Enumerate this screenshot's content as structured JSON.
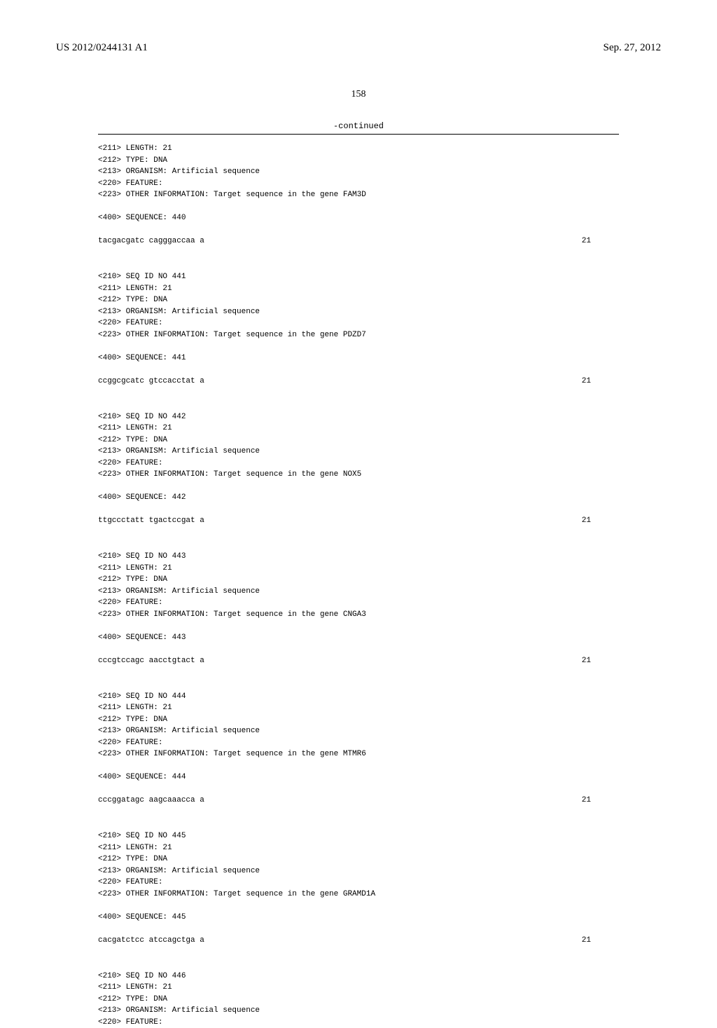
{
  "header": {
    "publication_number": "US 2012/0244131 A1",
    "date": "Sep. 27, 2012"
  },
  "page_number": "158",
  "continued_label": "-continued",
  "sequences": [
    {
      "meta": [
        "<211> LENGTH: 21",
        "<212> TYPE: DNA",
        "<213> ORGANISM: Artificial sequence",
        "<220> FEATURE:",
        "<223> OTHER INFORMATION: Target sequence in the gene FAM3D"
      ],
      "sequence_label": "<400> SEQUENCE: 440",
      "sequence": "tacgacgatc cagggaccaa a",
      "length": "21"
    },
    {
      "meta": [
        "<210> SEQ ID NO 441",
        "<211> LENGTH: 21",
        "<212> TYPE: DNA",
        "<213> ORGANISM: Artificial sequence",
        "<220> FEATURE:",
        "<223> OTHER INFORMATION: Target sequence in the gene PDZD7"
      ],
      "sequence_label": "<400> SEQUENCE: 441",
      "sequence": "ccggcgcatc gtccacctat a",
      "length": "21"
    },
    {
      "meta": [
        "<210> SEQ ID NO 442",
        "<211> LENGTH: 21",
        "<212> TYPE: DNA",
        "<213> ORGANISM: Artificial sequence",
        "<220> FEATURE:",
        "<223> OTHER INFORMATION: Target sequence in the gene NOX5"
      ],
      "sequence_label": "<400> SEQUENCE: 442",
      "sequence": "ttgccctatt tgactccgat a",
      "length": "21"
    },
    {
      "meta": [
        "<210> SEQ ID NO 443",
        "<211> LENGTH: 21",
        "<212> TYPE: DNA",
        "<213> ORGANISM: Artificial sequence",
        "<220> FEATURE:",
        "<223> OTHER INFORMATION: Target sequence in the gene CNGA3"
      ],
      "sequence_label": "<400> SEQUENCE: 443",
      "sequence": "cccgtccagc aacctgtact a",
      "length": "21"
    },
    {
      "meta": [
        "<210> SEQ ID NO 444",
        "<211> LENGTH: 21",
        "<212> TYPE: DNA",
        "<213> ORGANISM: Artificial sequence",
        "<220> FEATURE:",
        "<223> OTHER INFORMATION: Target sequence in the gene MTMR6"
      ],
      "sequence_label": "<400> SEQUENCE: 444",
      "sequence": "cccggatagc aagcaaacca a",
      "length": "21"
    },
    {
      "meta": [
        "<210> SEQ ID NO 445",
        "<211> LENGTH: 21",
        "<212> TYPE: DNA",
        "<213> ORGANISM: Artificial sequence",
        "<220> FEATURE:",
        "<223> OTHER INFORMATION: Target sequence in the gene GRAMD1A"
      ],
      "sequence_label": "<400> SEQUENCE: 445",
      "sequence": "cacgatctcc atccagctga a",
      "length": "21"
    },
    {
      "meta": [
        "<210> SEQ ID NO 446",
        "<211> LENGTH: 21",
        "<212> TYPE: DNA",
        "<213> ORGANISM: Artificial sequence",
        "<220> FEATURE:"
      ],
      "sequence_label": "",
      "sequence": "",
      "length": ""
    }
  ]
}
